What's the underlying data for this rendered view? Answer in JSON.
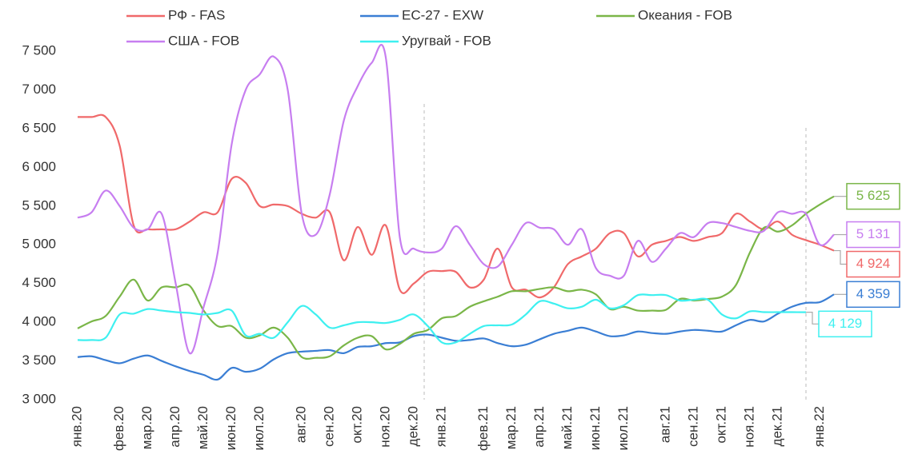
{
  "chart_data": {
    "type": "line",
    "categories": [
      "янв.20",
      null,
      null,
      "фев.20",
      null,
      "мар.20",
      null,
      "апр.20",
      null,
      "май.20",
      null,
      "июн.20",
      null,
      "июл.20",
      null,
      null,
      "авг.20",
      null,
      "сен.20",
      null,
      "окт.20",
      null,
      "ноя.20",
      null,
      "дек.20",
      null,
      "янв.21",
      null,
      null,
      "фев.21",
      null,
      "мар.21",
      null,
      "апр.21",
      null,
      "май.21",
      null,
      "июн.21",
      null,
      "июл.21",
      null,
      null,
      "авг.21",
      null,
      "сен.21",
      null,
      "окт.21",
      null,
      "ноя.21",
      null,
      "дек.21",
      null,
      null,
      "янв.22",
      null
    ],
    "series": [
      {
        "name": "РФ - FAS",
        "color": "#f0696a",
        "values": [
          6650,
          6650,
          6650,
          6280,
          5250,
          5200,
          5200,
          5200,
          5300,
          5420,
          5420,
          5850,
          5800,
          5500,
          5520,
          5500,
          5400,
          5350,
          5420,
          4800,
          5230,
          4870,
          5250,
          4420,
          4500,
          4650,
          4660,
          4650,
          4450,
          4550,
          4950,
          4450,
          4420,
          4320,
          4450,
          4750,
          4850,
          4950,
          5150,
          5150,
          4850,
          5000,
          5050,
          5100,
          5050,
          5100,
          5150,
          5400,
          5300,
          5200,
          5300,
          5130,
          5060,
          5000,
          4924
        ],
        "value_labels": [
          null,
          null,
          null,
          null,
          null,
          null,
          null,
          null,
          null,
          null,
          null,
          null,
          null,
          null,
          null,
          null,
          null,
          null,
          null,
          null,
          null,
          null,
          null,
          null,
          null,
          null,
          null,
          null,
          null,
          null,
          null,
          null,
          null,
          null,
          null,
          null,
          null,
          null,
          null,
          null,
          null,
          null,
          null,
          null,
          null,
          null,
          null,
          null,
          null,
          null,
          null,
          null,
          null,
          null,
          "4 924"
        ]
      },
      {
        "name": "ЕС-27 - EXW",
        "color": "#3a7ed4",
        "values": [
          3550,
          3560,
          3510,
          3470,
          3530,
          3570,
          3500,
          3430,
          3370,
          3320,
          3260,
          3410,
          3360,
          3400,
          3520,
          3600,
          3620,
          3630,
          3640,
          3600,
          3680,
          3690,
          3730,
          3740,
          3820,
          3840,
          3800,
          3760,
          3770,
          3790,
          3730,
          3690,
          3710,
          3780,
          3850,
          3890,
          3930,
          3880,
          3820,
          3830,
          3880,
          3860,
          3850,
          3880,
          3900,
          3890,
          3880,
          3960,
          4030,
          4010,
          4110,
          4200,
          4250,
          4260,
          4359
        ],
        "value_labels": [
          null,
          null,
          null,
          null,
          null,
          null,
          null,
          null,
          null,
          null,
          null,
          null,
          null,
          null,
          null,
          null,
          null,
          null,
          null,
          null,
          null,
          null,
          null,
          null,
          null,
          null,
          null,
          null,
          null,
          null,
          null,
          null,
          null,
          null,
          null,
          null,
          null,
          null,
          null,
          null,
          null,
          null,
          null,
          null,
          null,
          null,
          null,
          null,
          null,
          null,
          null,
          null,
          null,
          null,
          "4 359"
        ]
      },
      {
        "name": "Океания - FOB",
        "color": "#7ab648",
        "values": [
          3920,
          4010,
          4080,
          4330,
          4550,
          4280,
          4450,
          4450,
          4470,
          4150,
          3950,
          3950,
          3800,
          3830,
          3930,
          3800,
          3550,
          3540,
          3560,
          3700,
          3800,
          3820,
          3650,
          3720,
          3850,
          3900,
          4050,
          4080,
          4200,
          4270,
          4330,
          4400,
          4400,
          4430,
          4450,
          4400,
          4420,
          4360,
          4170,
          4200,
          4150,
          4150,
          4160,
          4300,
          4280,
          4300,
          4330,
          4480,
          4900,
          5220,
          5170,
          5250,
          5400,
          5520,
          5625
        ],
        "value_labels": [
          null,
          null,
          null,
          null,
          null,
          null,
          null,
          null,
          null,
          null,
          null,
          null,
          null,
          null,
          null,
          null,
          null,
          null,
          null,
          null,
          null,
          null,
          null,
          null,
          null,
          null,
          null,
          null,
          null,
          null,
          null,
          null,
          null,
          null,
          null,
          null,
          null,
          null,
          null,
          null,
          null,
          null,
          null,
          null,
          null,
          null,
          null,
          null,
          null,
          null,
          null,
          null,
          null,
          null,
          "5 625"
        ]
      },
      {
        "name": "США - FOB",
        "color": "#c77ef0",
        "values": [
          5350,
          5420,
          5700,
          5500,
          5220,
          5200,
          5400,
          4500,
          3600,
          4200,
          4900,
          6300,
          7000,
          7200,
          7430,
          7000,
          5400,
          5130,
          5650,
          6600,
          7050,
          7350,
          7420,
          5100,
          4950,
          4900,
          4950,
          5240,
          5000,
          4750,
          4720,
          5000,
          5280,
          5220,
          5200,
          5000,
          5200,
          4700,
          4600,
          4600,
          5050,
          4780,
          4950,
          5150,
          5100,
          5280,
          5280,
          5230,
          5180,
          5180,
          5420,
          5400,
          5400,
          5000,
          5131
        ],
        "value_labels": [
          null,
          null,
          null,
          null,
          null,
          null,
          null,
          null,
          null,
          null,
          null,
          null,
          null,
          null,
          null,
          null,
          null,
          null,
          null,
          null,
          null,
          null,
          null,
          null,
          null,
          null,
          null,
          null,
          null,
          null,
          null,
          null,
          null,
          null,
          null,
          null,
          null,
          null,
          null,
          null,
          null,
          null,
          null,
          null,
          null,
          null,
          null,
          null,
          null,
          null,
          null,
          null,
          null,
          null,
          "5 131"
        ]
      },
      {
        "name": "Уругвай - FOB",
        "color": "#3ef0f0",
        "values": [
          3770,
          3770,
          3800,
          4100,
          4110,
          4170,
          4150,
          4130,
          4120,
          4100,
          4120,
          4150,
          3830,
          3850,
          3800,
          4000,
          4210,
          4100,
          3930,
          3960,
          4000,
          4000,
          3990,
          4030,
          4100,
          3950,
          3740,
          3740,
          3850,
          3950,
          3960,
          3970,
          4100,
          4270,
          4240,
          4180,
          4200,
          4290,
          4180,
          4220,
          4350,
          4350,
          4350,
          4280,
          4290,
          4290,
          4100,
          4050,
          4140,
          4130,
          4130,
          4130,
          4129,
          null,
          null
        ],
        "value_labels": [
          null,
          null,
          null,
          null,
          null,
          null,
          null,
          null,
          null,
          null,
          null,
          null,
          null,
          null,
          null,
          null,
          null,
          null,
          null,
          null,
          null,
          null,
          null,
          null,
          null,
          null,
          null,
          null,
          null,
          null,
          null,
          null,
          null,
          null,
          null,
          null,
          null,
          null,
          null,
          null,
          null,
          null,
          null,
          null,
          null,
          null,
          null,
          null,
          null,
          null,
          null,
          null,
          "4 129",
          null,
          null
        ]
      }
    ],
    "ylim": [
      3000,
      7500
    ],
    "yticks": [
      {
        "value": 3000,
        "label": "3 000"
      },
      {
        "value": 3500,
        "label": "3 500"
      },
      {
        "value": 4000,
        "label": "4 000"
      },
      {
        "value": 4500,
        "label": "4 500"
      },
      {
        "value": 5000,
        "label": "5 000"
      },
      {
        "value": 5500,
        "label": "5 500"
      },
      {
        "value": 6000,
        "label": "6 000"
      },
      {
        "value": 6500,
        "label": "6 500"
      },
      {
        "value": 7000,
        "label": "7 000"
      },
      {
        "value": 7500,
        "label": "7 500"
      }
    ],
    "grid": false
  }
}
